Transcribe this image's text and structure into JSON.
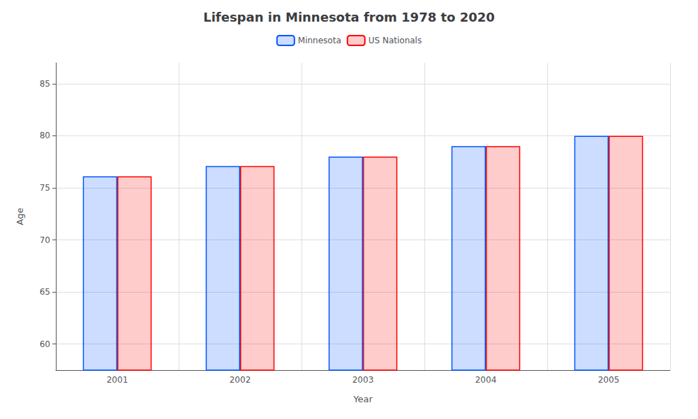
{
  "chart_data": {
    "type": "bar",
    "title": "Lifespan in Minnesota from 1978 to 2020",
    "xlabel": "Year",
    "ylabel": "Age",
    "categories": [
      "2001",
      "2002",
      "2003",
      "2004",
      "2005"
    ],
    "series": [
      {
        "name": "Minnesota",
        "color": "#0055ff",
        "values": [
          76.1,
          77.1,
          78.0,
          79.0,
          80.0
        ]
      },
      {
        "name": "US Nationals",
        "color": "#ff0000",
        "values": [
          76.1,
          77.1,
          78.0,
          79.0,
          80.0
        ]
      }
    ],
    "ylim": [
      57.5,
      87
    ],
    "yticks": [
      60,
      65,
      70,
      75,
      80,
      85
    ],
    "grid": true,
    "legend": "top"
  }
}
